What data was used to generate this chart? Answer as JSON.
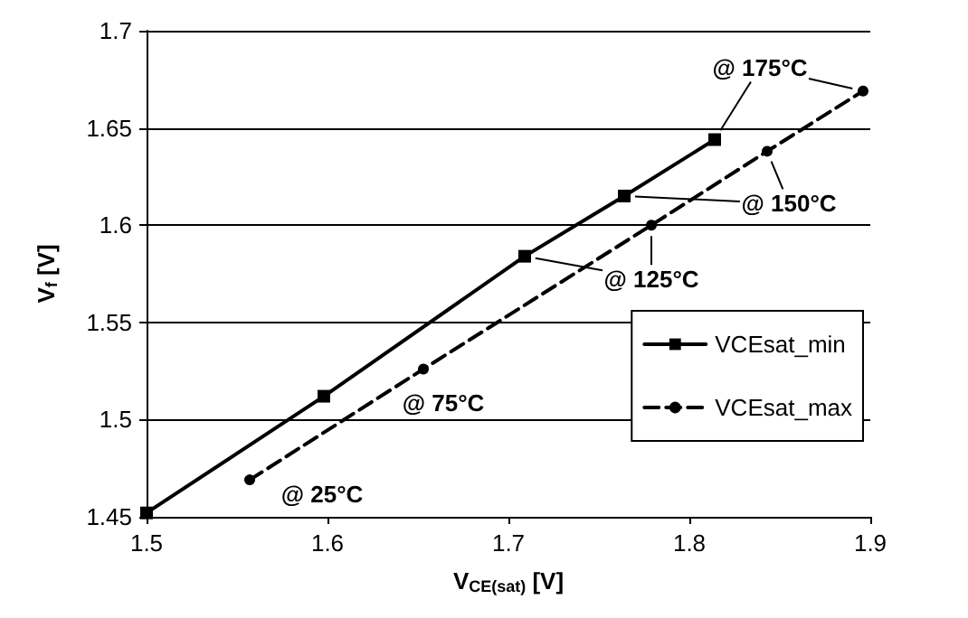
{
  "chart_data": {
    "type": "line",
    "xlabel": "V$_{CE(sat)}$ [V]",
    "ylabel": "V$_{f}$ [V]",
    "series": [
      {
        "name": "VCEsat_min",
        "color": "#000000",
        "marker": "square",
        "line_style": "solid",
        "x": [
          1.5,
          1.598,
          1.709,
          1.764,
          1.814
        ],
        "values": [
          1.452,
          1.512,
          1.584,
          1.615,
          1.644
        ]
      },
      {
        "name": "VCEsat_max",
        "color": "#000000",
        "marker": "circle",
        "line_style": "dashed",
        "x": [
          1.557,
          1.653,
          1.779,
          1.843,
          1.896
        ],
        "values": [
          1.469,
          1.526,
          1.6,
          1.638,
          1.669
        ]
      }
    ],
    "xlim": [
      1.5,
      1.9
    ],
    "xticks": [
      1.5,
      1.6,
      1.7,
      1.8,
      1.9
    ],
    "ylim": [
      1.45,
      1.7
    ],
    "yticks": [
      1.45,
      1.5,
      1.55,
      1.6,
      1.65,
      1.7
    ],
    "grid": "y",
    "legend": "bottom right",
    "annotations": [
      {
        "text": "@ 25°C",
        "x": 1.557,
        "y": 1.469
      },
      {
        "text": "@ 75°C",
        "x": 1.653,
        "y": 1.526
      },
      {
        "text": "@ 125°C",
        "x": 1.779,
        "y": 1.6
      },
      {
        "text": "@ 150°C",
        "x": 1.843,
        "y": 1.638
      },
      {
        "text": "@ 175°C",
        "x": 1.814,
        "y": 1.644
      }
    ]
  }
}
